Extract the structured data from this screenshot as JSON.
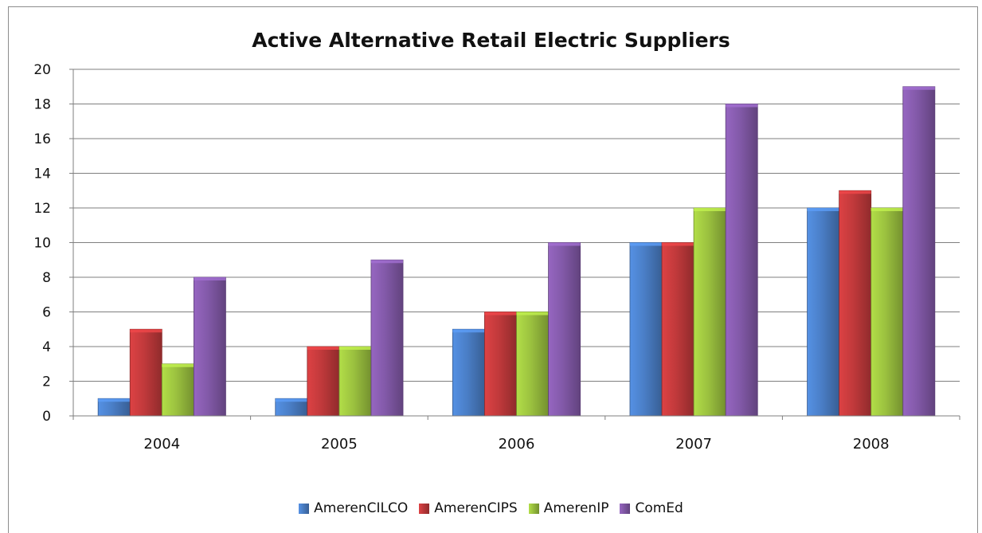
{
  "chart_data": {
    "type": "bar",
    "title": "Active Alternative Retail Electric Suppliers",
    "categories": [
      "2004",
      "2005",
      "2006",
      "2007",
      "2008"
    ],
    "series": [
      {
        "name": "AmerenCILCO",
        "color": "#4a7ec6",
        "values": [
          1,
          1,
          5,
          10,
          12
        ]
      },
      {
        "name": "AmerenCIPS",
        "color": "#c0393b",
        "values": [
          5,
          4,
          6,
          10,
          13
        ]
      },
      {
        "name": "AmerenIP",
        "color": "#9bc13f",
        "values": [
          3,
          4,
          6,
          12,
          12
        ]
      },
      {
        "name": "ComEd",
        "color": "#8259a8",
        "values": [
          8,
          9,
          10,
          18,
          19
        ]
      }
    ],
    "ylim": [
      0,
      20
    ],
    "yticks": [
      "0",
      "2",
      "4",
      "6",
      "8",
      "10",
      "12",
      "14",
      "16",
      "18",
      "20"
    ],
    "grid": true,
    "legend": "bottom"
  }
}
